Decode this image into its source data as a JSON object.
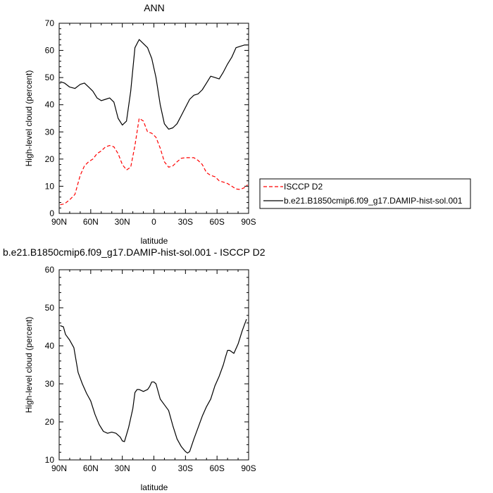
{
  "chart_data": [
    {
      "type": "line",
      "title": "ANN",
      "xlabel": "latitude",
      "ylabel": "High-level cloud (percent)",
      "xlim": [
        90,
        -90
      ],
      "ylim": [
        0,
        70
      ],
      "x_ticks": [
        90,
        60,
        30,
        0,
        -30,
        -60,
        -90
      ],
      "x_tick_labels": [
        "90N",
        "60N",
        "30N",
        "0",
        "30S",
        "60S",
        "90S"
      ],
      "y_ticks": [
        0,
        10,
        20,
        30,
        40,
        50,
        60,
        70
      ],
      "y_tick_labels": [
        "0",
        "10",
        "20",
        "30",
        "40",
        "50",
        "60",
        "70"
      ],
      "legend": {
        "placement": "right",
        "entries": [
          "ISCCP D2",
          "b.e21.B1850cmip6.f09_g17.DAMIP-hist-sol.001"
        ]
      },
      "series": [
        {
          "name": "ISCCP D2",
          "color": "#ff0000",
          "style": "dashed",
          "x": [
            89,
            85,
            80,
            75,
            70,
            66,
            62,
            58,
            54,
            50,
            46,
            42,
            38,
            34,
            30,
            26,
            22,
            18,
            14,
            10,
            6,
            2,
            -2,
            -6,
            -10,
            -14,
            -18,
            -22,
            -26,
            -30,
            -34,
            -38,
            -42,
            -46,
            -50,
            -54,
            -58,
            -62,
            -66,
            -70,
            -74,
            -78,
            -82,
            -86,
            -89
          ],
          "y": [
            3.2,
            3.5,
            5,
            7,
            14,
            17.5,
            19,
            20,
            22,
            23,
            24.5,
            25,
            24.5,
            22,
            18,
            16,
            17,
            25,
            35,
            34,
            30,
            29.5,
            28,
            24,
            19,
            17,
            17.5,
            19,
            20.3,
            20.5,
            20.5,
            20.5,
            19.5,
            18,
            15,
            14,
            13.5,
            12,
            11.5,
            11,
            10,
            9,
            8.8,
            9.5,
            10.5
          ]
        },
        {
          "name": "b.e21.B1850cmip6.f09_g17.DAMIP-hist-sol.001",
          "color": "#000000",
          "style": "solid",
          "x": [
            89,
            85,
            80,
            75,
            70,
            66,
            62,
            58,
            54,
            50,
            46,
            42,
            38,
            34,
            30,
            26,
            22,
            18,
            14,
            10,
            6,
            2,
            -2,
            -6,
            -10,
            -14,
            -18,
            -22,
            -26,
            -30,
            -34,
            -38,
            -42,
            -46,
            -50,
            -54,
            -58,
            -62,
            -66,
            -70,
            -74,
            -78,
            -82,
            -86,
            -89
          ],
          "y": [
            48.5,
            48,
            46.5,
            46,
            47.5,
            48,
            46.5,
            45,
            42.5,
            41.5,
            42,
            42.5,
            41,
            35,
            32.5,
            34,
            45,
            61,
            64,
            62.5,
            61,
            57,
            50,
            40,
            33,
            31,
            31.5,
            33,
            36,
            39,
            42,
            43.5,
            44,
            45.5,
            48,
            50.5,
            50,
            49.5,
            52,
            55,
            57.5,
            61,
            61.5,
            62,
            62
          ]
        }
      ]
    },
    {
      "type": "line",
      "title": "b.e21.B1850cmip6.f09_g17.DAMIP-hist-sol.001 - ISCCP D2",
      "xlabel": "latitude",
      "ylabel": "High-level cloud (percent)",
      "xlim": [
        90,
        -90
      ],
      "ylim": [
        10,
        60
      ],
      "x_ticks": [
        90,
        60,
        30,
        0,
        -30,
        -60,
        -90
      ],
      "x_tick_labels": [
        "90N",
        "60N",
        "30N",
        "0",
        "30S",
        "60S",
        "90S"
      ],
      "y_ticks": [
        10,
        20,
        30,
        40,
        50,
        60
      ],
      "y_tick_labels": [
        "10",
        "20",
        "30",
        "40",
        "50",
        "60"
      ],
      "series": [
        {
          "color": "#000000",
          "style": "solid",
          "x": [
            89,
            86,
            84,
            80,
            76,
            72,
            68,
            64,
            60,
            56,
            52,
            48,
            44,
            40,
            36,
            32,
            30,
            28,
            24,
            20,
            18,
            16,
            14,
            10,
            6,
            4,
            2,
            0,
            -2,
            -6,
            -10,
            -14,
            -18,
            -22,
            -26,
            -30,
            -32,
            -34,
            -38,
            -42,
            -46,
            -50,
            -54,
            -58,
            -62,
            -66,
            -68,
            -70,
            -72,
            -76,
            -80,
            -84,
            -88
          ],
          "y": [
            45.3,
            45,
            43,
            41.5,
            39.5,
            33,
            30,
            27.5,
            25.5,
            22,
            19.3,
            17.5,
            17,
            17.3,
            17,
            16,
            15,
            14.8,
            18.5,
            23.5,
            27.7,
            28.5,
            28.5,
            28,
            28.5,
            29.3,
            30.5,
            30.5,
            30,
            26,
            24.5,
            23,
            19,
            15.5,
            13.5,
            12.2,
            11.8,
            12.2,
            15.5,
            18.5,
            21.5,
            24,
            26,
            29.5,
            32,
            35,
            37,
            38.8,
            38.8,
            38,
            40.5,
            44,
            47
          ]
        }
      ]
    }
  ]
}
